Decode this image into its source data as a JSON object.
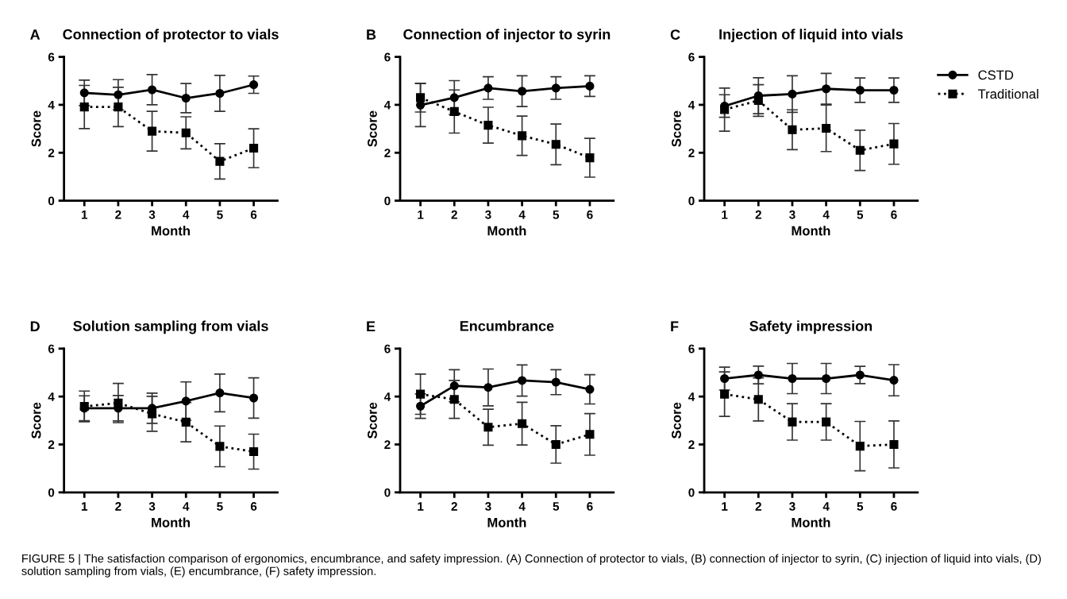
{
  "chart_data": [
    {
      "type": "line",
      "title": "Connection of protector to vials",
      "annotations": [
        "A"
      ],
      "xlabel": "Month",
      "ylabel": "Score",
      "x": [
        1,
        2,
        3,
        4,
        5,
        6
      ],
      "xlim": [
        0.4,
        6.7
      ],
      "xticks": [
        1,
        2,
        3,
        4,
        5,
        6
      ],
      "ylim": [
        0,
        6
      ],
      "yticks": [
        0,
        2,
        4,
        6
      ],
      "grid": false,
      "series": [
        {
          "color": "#000000",
          "marker": "circle",
          "line_style": "solid",
          "values": [
            4.5,
            4.42,
            4.63,
            4.28,
            4.48,
            4.84
          ],
          "errors": [
            0.53,
            0.63,
            0.63,
            0.61,
            0.75,
            0.36
          ]
        },
        {
          "color": "#000000",
          "marker": "square",
          "line_style": "dotted",
          "values": [
            3.91,
            3.91,
            2.9,
            2.83,
            1.64,
            2.19
          ],
          "errors": [
            0.9,
            0.82,
            0.83,
            0.67,
            0.74,
            0.81
          ]
        }
      ]
    },
    {
      "type": "line",
      "title": "Connection of injector to syrin",
      "annotations": [
        "B"
      ],
      "xlabel": "Month",
      "ylabel": "Score",
      "x": [
        1,
        2,
        3,
        4,
        5,
        6
      ],
      "xlim": [
        0.4,
        6.7
      ],
      "xticks": [
        1,
        2,
        3,
        4,
        5,
        6
      ],
      "ylim": [
        0,
        6
      ],
      "yticks": [
        0,
        2,
        4,
        6
      ],
      "grid": false,
      "series": [
        {
          "color": "#000000",
          "marker": "circle",
          "line_style": "solid",
          "values": [
            3.99,
            4.3,
            4.7,
            4.57,
            4.7,
            4.78
          ],
          "errors": [
            0.9,
            0.71,
            0.47,
            0.64,
            0.47,
            0.43
          ]
        },
        {
          "color": "#000000",
          "marker": "square",
          "line_style": "dotted",
          "values": [
            4.3,
            3.72,
            3.15,
            2.71,
            2.35,
            1.79
          ],
          "errors": [
            0.6,
            0.9,
            0.75,
            0.82,
            0.85,
            0.81
          ]
        }
      ]
    },
    {
      "type": "line",
      "title": "Injection of liquid into vials",
      "annotations": [
        "C"
      ],
      "xlabel": "Month",
      "ylabel": "Score",
      "x": [
        1,
        2,
        3,
        4,
        5,
        6
      ],
      "xlim": [
        0.4,
        6.7
      ],
      "xticks": [
        1,
        2,
        3,
        4,
        5,
        6
      ],
      "ylim": [
        0,
        6
      ],
      "yticks": [
        0,
        2,
        4,
        6
      ],
      "grid": false,
      "legend": "right",
      "series": [
        {
          "name": "CSTD",
          "color": "#000000",
          "marker": "circle",
          "line_style": "solid",
          "values": [
            3.95,
            4.38,
            4.45,
            4.67,
            4.61,
            4.61
          ],
          "errors": [
            0.47,
            0.75,
            0.76,
            0.64,
            0.51,
            0.51
          ]
        },
        {
          "name": "Traditional",
          "color": "#000000",
          "marker": "square",
          "line_style": "dotted",
          "values": [
            3.8,
            4.18,
            2.96,
            3.02,
            2.1,
            2.37
          ],
          "errors": [
            0.9,
            0.66,
            0.83,
            0.97,
            0.84,
            0.85
          ]
        }
      ]
    },
    {
      "type": "line",
      "title": "Solution sampling from vials",
      "annotations": [
        "D"
      ],
      "xlabel": "Month",
      "ylabel": "Score",
      "x": [
        1,
        2,
        3,
        4,
        5,
        6
      ],
      "xlim": [
        0.4,
        6.7
      ],
      "xticks": [
        1,
        2,
        3,
        4,
        5,
        6
      ],
      "ylim": [
        0,
        6
      ],
      "yticks": [
        0,
        2,
        4,
        6
      ],
      "grid": false,
      "series": [
        {
          "color": "#000000",
          "marker": "circle",
          "line_style": "solid",
          "values": [
            3.51,
            3.51,
            3.51,
            3.81,
            4.15,
            3.94
          ],
          "errors": [
            0.52,
            0.53,
            0.63,
            0.8,
            0.79,
            0.84
          ]
        },
        {
          "color": "#000000",
          "marker": "square",
          "line_style": "dotted",
          "values": [
            3.59,
            3.73,
            3.28,
            2.93,
            1.92,
            1.7
          ],
          "errors": [
            0.64,
            0.82,
            0.73,
            0.82,
            0.85,
            0.73
          ]
        }
      ]
    },
    {
      "type": "line",
      "title": "Encumbrance",
      "annotations": [
        "E"
      ],
      "xlabel": "Month",
      "ylabel": "Score",
      "x": [
        1,
        2,
        3,
        4,
        5,
        6
      ],
      "xlim": [
        0.4,
        6.7
      ],
      "xticks": [
        1,
        2,
        3,
        4,
        5,
        6
      ],
      "ylim": [
        0,
        6
      ],
      "yticks": [
        0,
        2,
        4,
        6
      ],
      "grid": false,
      "series": [
        {
          "color": "#000000",
          "marker": "circle",
          "line_style": "solid",
          "values": [
            3.6,
            4.45,
            4.38,
            4.67,
            4.6,
            4.3
          ],
          "errors": [
            0.51,
            0.67,
            0.77,
            0.65,
            0.52,
            0.61
          ]
        },
        {
          "color": "#000000",
          "marker": "square",
          "line_style": "dotted",
          "values": [
            4.1,
            3.88,
            2.72,
            2.87,
            2.0,
            2.42
          ],
          "errors": [
            0.84,
            0.79,
            0.75,
            0.89,
            0.78,
            0.87
          ]
        }
      ]
    },
    {
      "type": "line",
      "title": "Safety impression",
      "annotations": [
        "F",
        "FIGURE 5 | The satisfaction comparison of ergonomics, encumbrance, and safety impression. (A) Connection of protector to vials, (B) connection of injector to syrin, (C) injection of liquid into vials, (D) solution sampling from vials, (E) encumbrance, (F) safety impression."
      ],
      "xlabel": "Month",
      "ylabel": "Score",
      "x": [
        1,
        2,
        3,
        4,
        5,
        6
      ],
      "xlim": [
        0.4,
        6.7
      ],
      "xticks": [
        1,
        2,
        3,
        4,
        5,
        6
      ],
      "ylim": [
        0,
        6
      ],
      "yticks": [
        0,
        2,
        4,
        6
      ],
      "grid": false,
      "series": [
        {
          "color": "#000000",
          "marker": "circle",
          "line_style": "solid",
          "values": [
            4.75,
            4.9,
            4.75,
            4.75,
            4.9,
            4.68
          ],
          "errors": [
            0.48,
            0.37,
            0.63,
            0.63,
            0.36,
            0.65
          ]
        },
        {
          "color": "#000000",
          "marker": "square",
          "line_style": "dotted",
          "values": [
            4.1,
            3.88,
            2.94,
            2.94,
            1.93,
            2.0
          ],
          "errors": [
            0.93,
            0.9,
            0.76,
            0.76,
            1.03,
            0.98
          ]
        }
      ]
    }
  ]
}
